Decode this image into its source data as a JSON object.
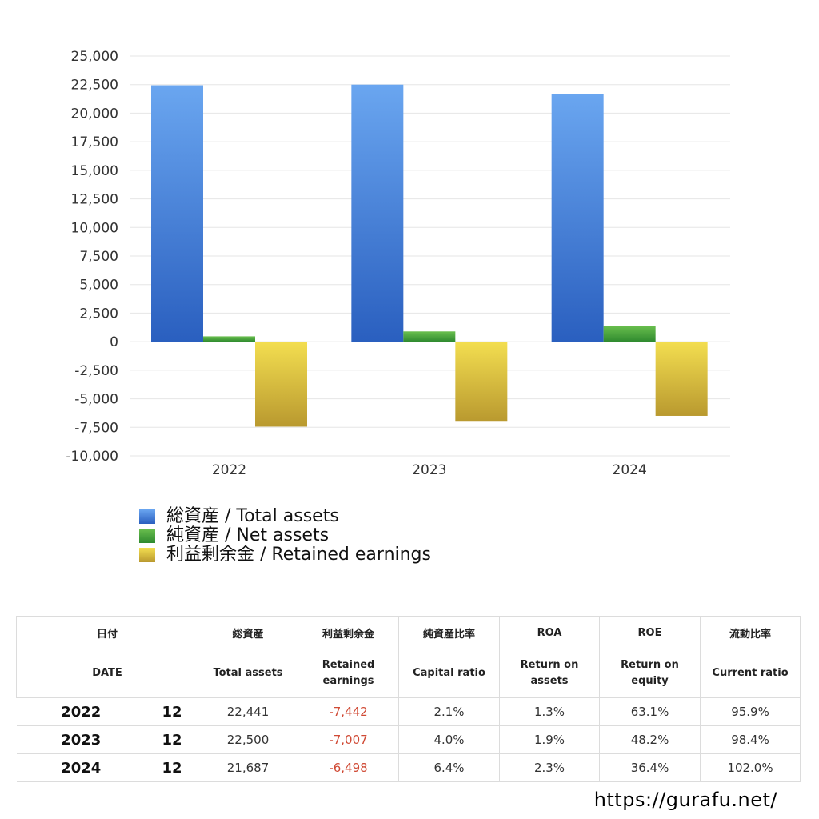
{
  "chart_data": {
    "type": "bar",
    "categories": [
      "2022",
      "2023",
      "2024"
    ],
    "series": [
      {
        "name": "総資産 / Total assets",
        "values": [
          22441,
          22500,
          21687
        ],
        "color_top": "#6aa6f0",
        "color_bottom": "#2a5fbf"
      },
      {
        "name": "純資産 / Net assets",
        "values": [
          470,
          900,
          1400
        ],
        "color_top": "#6abf4e",
        "color_bottom": "#2f8a2f"
      },
      {
        "name": "利益剰余金 / Retained earnings",
        "values": [
          -7442,
          -7007,
          -6498
        ],
        "color_top": "#f3de50",
        "color_bottom": "#b9992f"
      }
    ],
    "ylim": [
      -10000,
      25000
    ],
    "yticks": [
      25000,
      22500,
      20000,
      17500,
      15000,
      12500,
      10000,
      7500,
      5000,
      2500,
      0,
      -2500,
      -5000,
      -7500,
      -10000
    ],
    "ytick_labels": [
      "25,000",
      "22,500",
      "20,000",
      "17,500",
      "15,000",
      "12,500",
      "10,000",
      "7,500",
      "5,000",
      "2,500",
      "0",
      "-2,500",
      "-5,000",
      "-7,500",
      "-10,000"
    ],
    "grid": true,
    "legend": "bottom",
    "title": "",
    "xlabel": "",
    "ylabel": ""
  },
  "legend": {
    "items": [
      {
        "label": "総資産 / Total assets",
        "color": "#3e7fd8"
      },
      {
        "label": "純資産 / Net assets",
        "color": "#43a03a"
      },
      {
        "label": "利益剰余金 / Retained earnings",
        "color": "#d9be3e"
      }
    ]
  },
  "table": {
    "headers_jp": {
      "date": "日付",
      "total_assets": "総資産",
      "retained": "利益剰余金",
      "capital_ratio": "純資産比率",
      "roa": "ROA",
      "roe": "ROE",
      "current_ratio": "流動比率"
    },
    "headers_en": {
      "date": "DATE",
      "total_assets": "Total assets",
      "retained_1": "Retained",
      "retained_2": "earnings",
      "capital_ratio": "Capital ratio",
      "roa_1": "Return on",
      "roa_2": "assets",
      "roe_1": "Return on",
      "roe_2": "equity",
      "current_ratio": "Current ratio"
    },
    "rows": [
      {
        "year": "2022",
        "month": "12",
        "total_assets": "22,441",
        "retained": "-7,442",
        "capital_ratio": "2.1%",
        "roa": "1.3%",
        "roe": "63.1%",
        "current_ratio": "95.9%"
      },
      {
        "year": "2023",
        "month": "12",
        "total_assets": "22,500",
        "retained": "-7,007",
        "capital_ratio": "4.0%",
        "roa": "1.9%",
        "roe": "48.2%",
        "current_ratio": "98.4%"
      },
      {
        "year": "2024",
        "month": "12",
        "total_assets": "21,687",
        "retained": "-6,498",
        "capital_ratio": "6.4%",
        "roa": "2.3%",
        "roe": "36.4%",
        "current_ratio": "102.0%"
      }
    ]
  },
  "footer": {
    "url": "https://gurafu.net/"
  }
}
